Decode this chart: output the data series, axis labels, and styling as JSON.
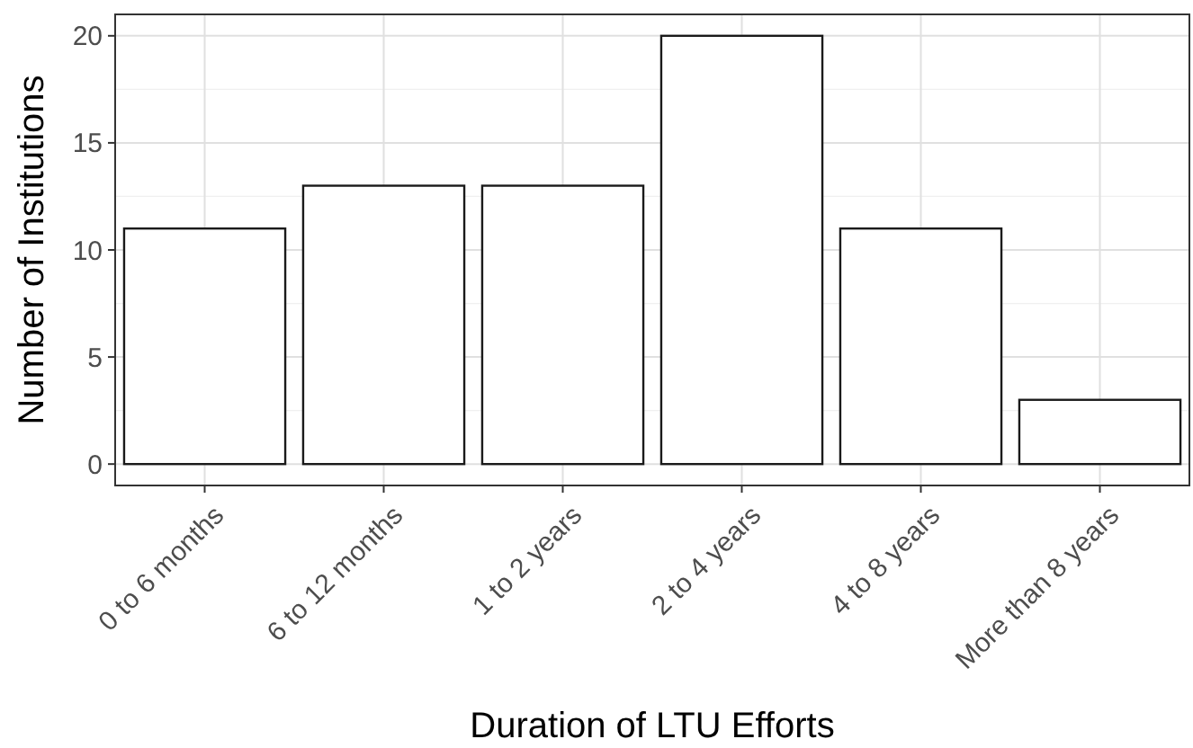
{
  "chart_data": {
    "type": "bar",
    "xlabel": "Duration of LTU Efforts",
    "ylabel": "Number of Institutions",
    "categories": [
      "0 to 6 months",
      "6 to 12 months",
      "1 to 2 years",
      "2 to 4 years",
      "4 to 8 years",
      "More than 8 years"
    ],
    "values": [
      11,
      13,
      13,
      20,
      11,
      3
    ],
    "color": "#ffffff",
    "ylim": [
      -1,
      21
    ],
    "yticks": [
      0,
      5,
      10,
      15,
      20
    ],
    "grid": true
  }
}
